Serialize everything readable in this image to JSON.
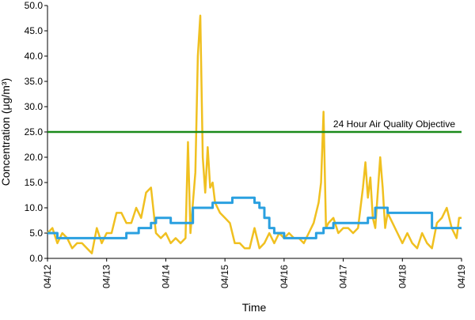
{
  "chart_data": {
    "type": "line",
    "y_label": "Concentration (μg/m³)",
    "x_label": "Time",
    "annotation": "24 Hour Air Quality Objective",
    "xlim": [
      0,
      168
    ],
    "xticks": [
      {
        "value": 0,
        "label": "04/12"
      },
      {
        "value": 24,
        "label": "04/13"
      },
      {
        "value": 48,
        "label": "04/14"
      },
      {
        "value": 72,
        "label": "04/15"
      },
      {
        "value": 96,
        "label": "04/16"
      },
      {
        "value": 120,
        "label": "04/17"
      },
      {
        "value": 144,
        "label": "04/18"
      },
      {
        "value": 168,
        "label": "04/19"
      }
    ],
    "ylim": [
      0,
      50
    ],
    "yticks": [
      {
        "value": 0,
        "label": "0.0"
      },
      {
        "value": 5,
        "label": "5.0"
      },
      {
        "value": 10,
        "label": "10.0"
      },
      {
        "value": 15,
        "label": "15.0"
      },
      {
        "value": 20,
        "label": "20.0"
      },
      {
        "value": 25,
        "label": "25.0"
      },
      {
        "value": 30,
        "label": "30.0"
      },
      {
        "value": 35,
        "label": "35.0"
      },
      {
        "value": 40,
        "label": "40.0"
      },
      {
        "value": 45,
        "label": "45.0"
      },
      {
        "value": 50,
        "label": "50.0"
      }
    ],
    "series": [
      {
        "color": "#f0c020",
        "step": false,
        "x": [
          0,
          2,
          4,
          6,
          8,
          10,
          12,
          14,
          16,
          18,
          20,
          22,
          24,
          26,
          28,
          30,
          32,
          34,
          36,
          38,
          40,
          42,
          44,
          46,
          48,
          50,
          52,
          54,
          56,
          57,
          58,
          60,
          61,
          62,
          63,
          64,
          65,
          66,
          67,
          68,
          70,
          72,
          74,
          76,
          78,
          80,
          82,
          84,
          86,
          88,
          90,
          92,
          94,
          96,
          98,
          100,
          102,
          104,
          106,
          108,
          110,
          111,
          112,
          113,
          114,
          116,
          118,
          120,
          122,
          124,
          126,
          128,
          129,
          130,
          131,
          132,
          133,
          135,
          136,
          137,
          138,
          140,
          142,
          144,
          146,
          148,
          150,
          152,
          154,
          156,
          158,
          160,
          162,
          164,
          166,
          167,
          168
        ],
        "values": [
          5,
          6,
          3,
          5,
          4,
          2,
          3,
          3,
          2,
          1,
          6,
          3,
          5,
          5,
          9,
          9,
          7,
          7,
          10,
          8,
          13,
          14,
          5,
          4,
          5,
          3,
          4,
          3,
          4,
          23,
          5,
          17,
          40,
          48,
          20,
          13,
          22,
          14,
          15,
          11,
          9,
          8,
          7,
          3,
          3,
          2,
          2,
          6,
          2,
          3,
          5,
          3,
          5,
          4,
          5,
          4,
          4,
          3,
          5,
          7,
          11,
          15,
          29,
          6,
          7,
          8,
          5,
          6,
          6,
          5,
          6,
          14,
          19,
          12,
          16,
          8,
          6,
          20,
          14,
          6,
          9,
          7,
          5,
          3,
          5,
          3,
          2,
          5,
          3,
          2,
          7,
          8,
          10,
          6,
          4,
          8,
          8
        ]
      },
      {
        "color": "#2aa0e0",
        "step": true,
        "x": [
          0,
          4,
          32,
          37,
          42,
          44,
          50,
          59,
          67,
          75,
          84,
          86,
          88,
          90,
          92,
          96,
          109,
          112,
          116,
          130,
          133,
          138,
          156,
          168
        ],
        "values": [
          5,
          4,
          5,
          6,
          7,
          8,
          7,
          10,
          11,
          12,
          11,
          10,
          8,
          6,
          5,
          4,
          5,
          6,
          7,
          8,
          10,
          9,
          6,
          6
        ]
      },
      {
        "color": "#1a8a1a",
        "step": false,
        "x": [
          0,
          168
        ],
        "values": [
          25,
          25
        ]
      }
    ]
  }
}
